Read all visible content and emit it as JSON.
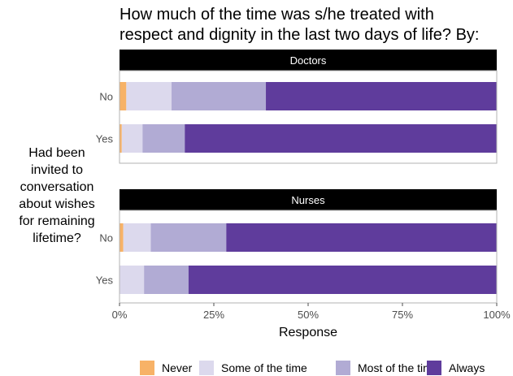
{
  "chart_data": {
    "type": "bar",
    "orientation": "horizontal",
    "stacked": true,
    "title": "How much of the time was s/he treated with respect and dignity in the last two days of life? By:",
    "title_lines": [
      "How much of the time was s/he treated with",
      "respect and dignity in the last two days of life? By:"
    ],
    "xlabel": "Response",
    "ylabel": "Had been invited to conversation about wishes for remaining lifetime?",
    "ylabel_lines": [
      "Had been",
      "invited to",
      "conversation",
      "about wishes",
      "for remaining",
      "lifetime?"
    ],
    "xlim": [
      0,
      1
    ],
    "x_ticks": [
      "0%",
      "25%",
      "50%",
      "75%",
      "100%"
    ],
    "legend_position": "bottom",
    "series": [
      {
        "name": "Never",
        "color": "#F7B267"
      },
      {
        "name": "Some of the time",
        "color": "#DCD9ED"
      },
      {
        "name": "Most of the time",
        "color": "#B1ABD4"
      },
      {
        "name": "Always",
        "color": "#5F3C9C"
      }
    ],
    "panels": [
      {
        "label": "Doctors",
        "categories": [
          "No",
          "Yes"
        ],
        "values": [
          [
            0.018,
            0.12,
            0.25,
            0.612
          ],
          [
            0.006,
            0.055,
            0.112,
            0.827
          ]
        ]
      },
      {
        "label": "Nurses",
        "categories": [
          "No",
          "Yes"
        ],
        "values": [
          [
            0.01,
            0.073,
            0.2,
            0.717
          ],
          [
            0.0,
            0.065,
            0.118,
            0.817
          ]
        ]
      }
    ]
  }
}
